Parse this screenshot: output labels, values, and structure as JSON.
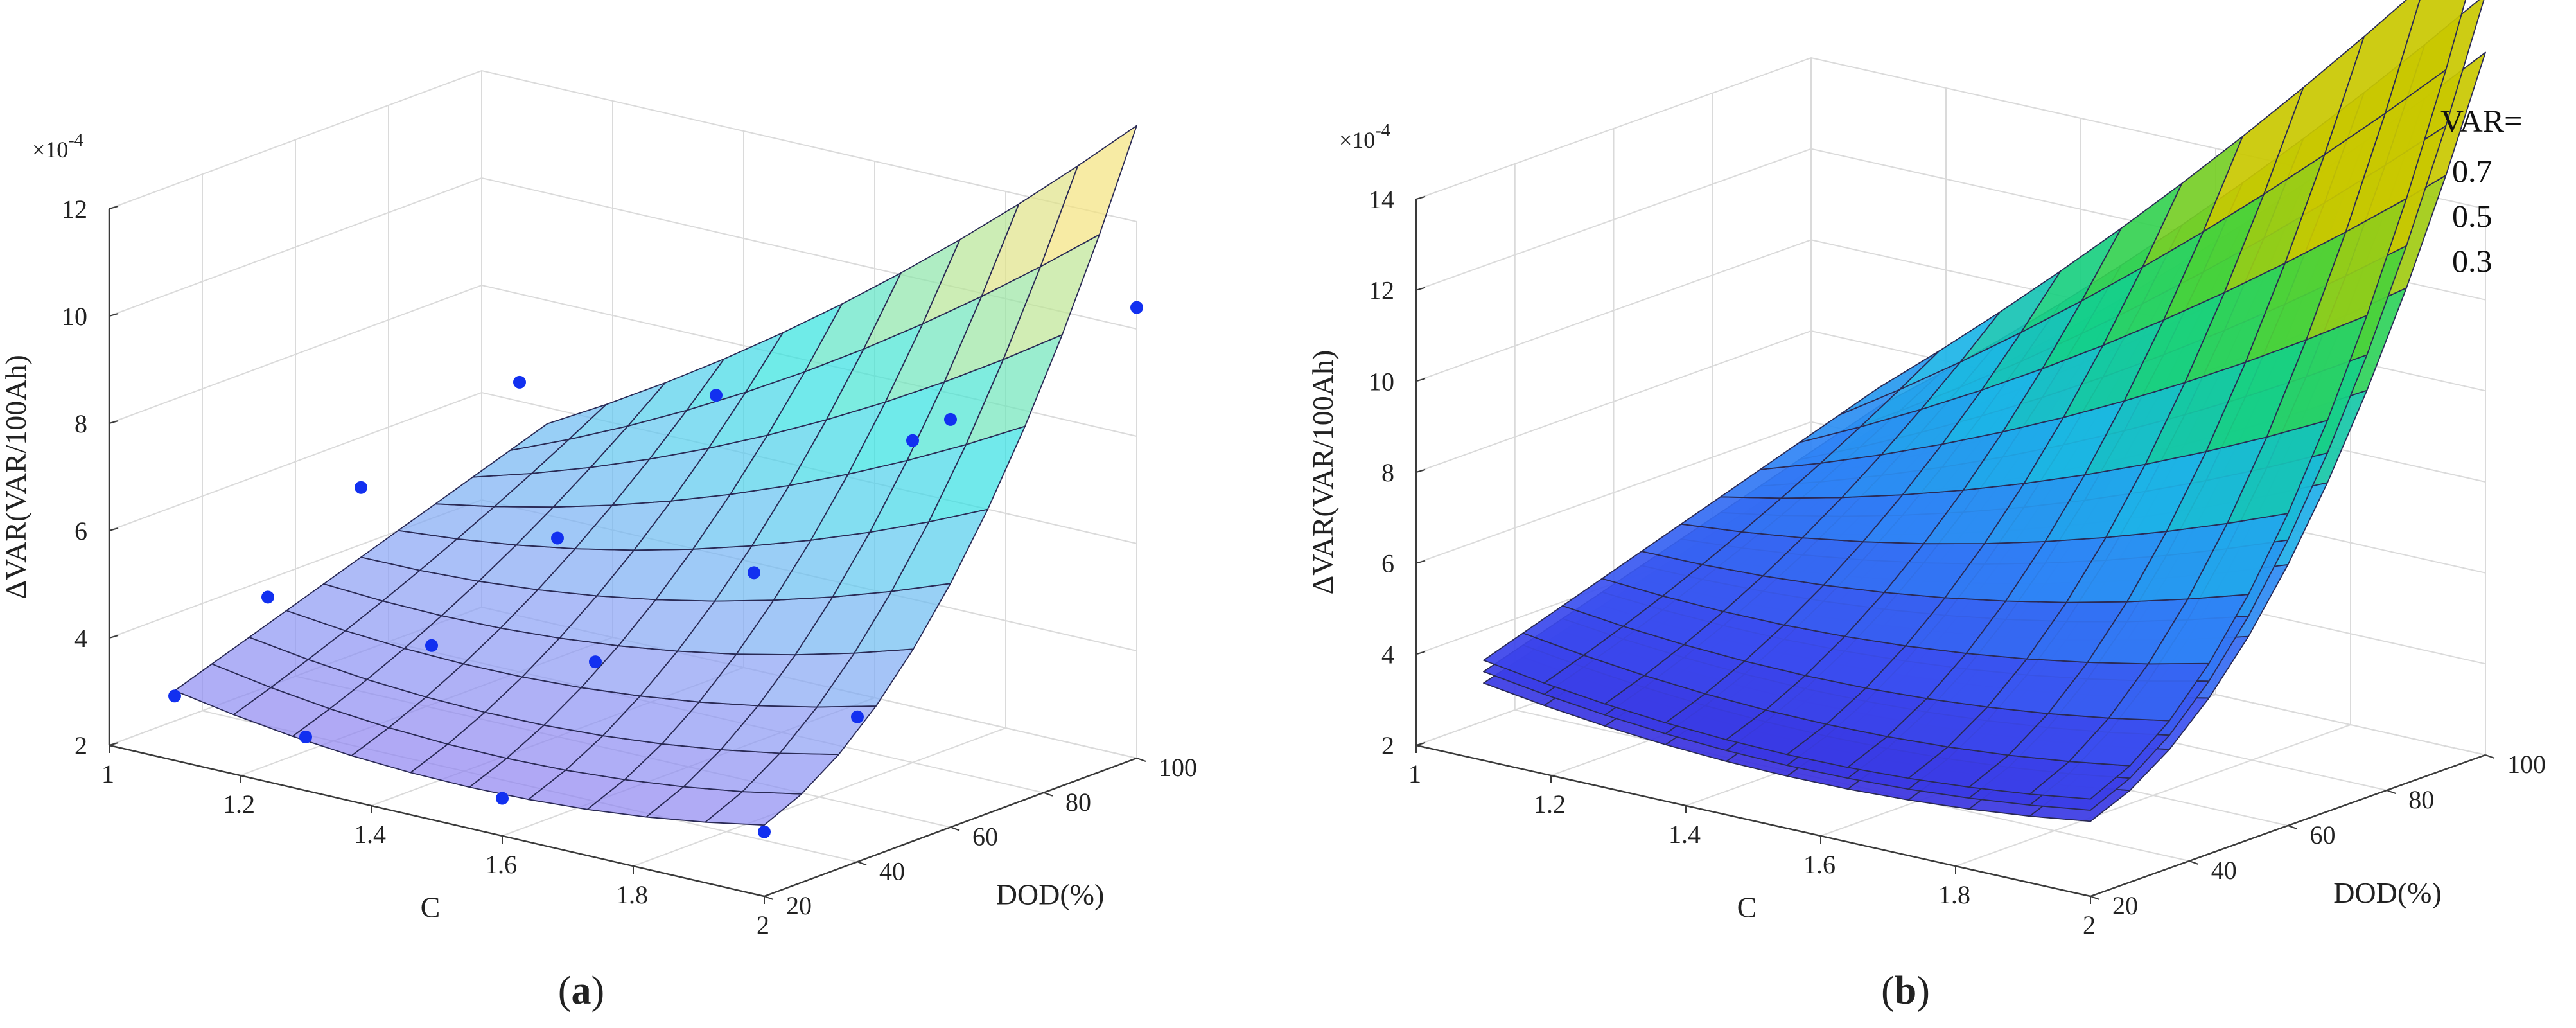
{
  "figure": {
    "captions": [
      {
        "open": "(",
        "letter": "a",
        "close": ")"
      },
      {
        "open": "(",
        "letter": "b",
        "close": ")"
      }
    ]
  },
  "chart_data": [
    {
      "type": "surface3d",
      "panel": "a",
      "xlabel": "C",
      "ylabel": "DOD(%)",
      "zlabel": "ΔVAR(VAR/100Ah)",
      "zexponent": "×10",
      "zexponent_power": "-4",
      "xlim": [
        1,
        2
      ],
      "ylim": [
        20,
        100
      ],
      "zlim": [
        2,
        12
      ],
      "xticks": [
        "1",
        "1.2",
        "1.4",
        "1.6",
        "1.8",
        "2"
      ],
      "yticks": [
        "20",
        "40",
        "60",
        "80",
        "100"
      ],
      "zticks": [
        "2",
        "4",
        "6",
        "8",
        "10",
        "12"
      ],
      "grid": true,
      "colormap": [
        "#8f7ff0",
        "#8aa2f5",
        "#5fc6f0",
        "#2ee3e0",
        "#9fe6a0",
        "#f4e27e"
      ],
      "surface_opacity": 0.7,
      "surface": {
        "x_range": [
          1.1,
          2.0
        ],
        "y_range": [
          20,
          100
        ],
        "fit": "z = 3.3 - 2.4*(C-1.1) + 2.7*(C-1.1)^2 + 0.03*(DOD-20) + 0.0014*(DOD-20)*(DOD-20)*(C-1.1)"
      },
      "points": [
        {
          "x": 1.1,
          "y": 20,
          "z": 3.2
        },
        {
          "x": 1.3,
          "y": 20,
          "z": 3.0
        },
        {
          "x": 1.6,
          "y": 20,
          "z": 2.7
        },
        {
          "x": 2.0,
          "y": 20,
          "z": 3.2
        },
        {
          "x": 1.1,
          "y": 40,
          "z": 4.4
        },
        {
          "x": 1.35,
          "y": 40,
          "z": 4.2
        },
        {
          "x": 1.6,
          "y": 40,
          "z": 4.6
        },
        {
          "x": 2.0,
          "y": 40,
          "z": 4.7
        },
        {
          "x": 1.1,
          "y": 60,
          "z": 5.8
        },
        {
          "x": 1.4,
          "y": 60,
          "z": 5.7
        },
        {
          "x": 1.7,
          "y": 60,
          "z": 5.9
        },
        {
          "x": 2.0,
          "y": 60,
          "z": 9.6
        },
        {
          "x": 1.2,
          "y": 80,
          "z": 7.4
        },
        {
          "x": 1.5,
          "y": 80,
          "z": 8.0
        },
        {
          "x": 1.8,
          "y": 80,
          "z": 8.0
        },
        {
          "x": 2.0,
          "y": 100,
          "z": 10.4
        }
      ]
    },
    {
      "type": "surface3d",
      "panel": "b",
      "xlabel": "C",
      "ylabel": "DOD(%)",
      "zlabel": "ΔVAR(VAR/100Ah)",
      "zexponent": "×10",
      "zexponent_power": "-4",
      "xlim": [
        1,
        2
      ],
      "ylim": [
        20,
        100
      ],
      "zlim": [
        2,
        14
      ],
      "xticks": [
        "1",
        "1.2",
        "1.4",
        "1.6",
        "1.8",
        "2"
      ],
      "yticks": [
        "20",
        "40",
        "60",
        "80",
        "100"
      ],
      "zticks": [
        "2",
        "4",
        "6",
        "8",
        "10",
        "12",
        "14"
      ],
      "grid": true,
      "colormap": [
        "#3a2bdc",
        "#3b4ff0",
        "#2f84f5",
        "#1bb6e6",
        "#14cf8a",
        "#3fd23f",
        "#c9c800"
      ],
      "legend": {
        "title": "VAR=",
        "entries": [
          "0.7",
          "0.5",
          "0.3"
        ]
      },
      "series": [
        {
          "name": "0.3",
          "fit": "z = 3.7 - 2.4*(C-1.1) + 2.6*(C-1.1)^2 + 0.032*(DOD-20) + 0.00195*(DOD-20)*(DOD-20)*(C-1.1)"
        },
        {
          "name": "0.5",
          "fit": "z = 3.95 - 2.45*(C-1.1) + 2.65*(C-1.1)^2 + 0.034*(DOD-20) + 0.0021*(DOD-20)*(DOD-20)*(C-1.1)"
        },
        {
          "name": "0.7",
          "fit": "z = 4.2 - 2.5*(C-1.1) + 2.7*(C-1.1)^2 + 0.036*(DOD-20) + 0.00228*(DOD-20)*(DOD-20)*(C-1.1)"
        }
      ]
    }
  ]
}
